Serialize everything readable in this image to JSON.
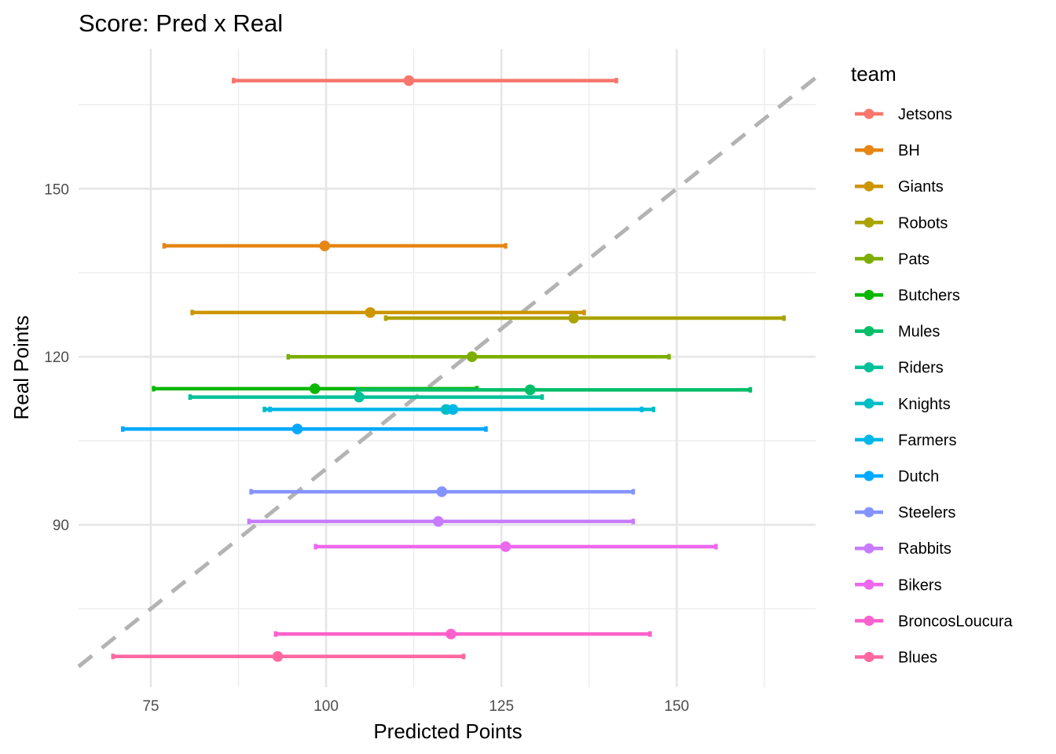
{
  "chart_data": {
    "type": "scatter",
    "subtype": "point-with-horizontal-errorbars",
    "title": "Score: Pred x Real",
    "xlabel": "Predicted Points",
    "ylabel": "Real Points",
    "xlim": [
      64.7,
      169.8
    ],
    "ylim": [
      61.0,
      175.0
    ],
    "x_ticks": [
      75,
      100,
      125,
      150
    ],
    "x_tick_labels": [
      "75",
      "100",
      "125",
      "150"
    ],
    "x_minor_ticks": [
      62.5,
      87.5,
      112.5,
      137.5,
      162.5
    ],
    "y_ticks": [
      90,
      120,
      150
    ],
    "y_tick_labels": [
      "90",
      "120",
      "150"
    ],
    "y_minor_ticks": [
      75,
      105,
      135,
      165
    ],
    "grid": true,
    "reference_line": {
      "type": "identity",
      "slope": 1,
      "intercept": 0,
      "style": "dashed",
      "color": "#b3b3b3"
    },
    "legend": {
      "title": "team",
      "position": "right"
    },
    "series": [
      {
        "name": "Jetsons",
        "color": "#F8766D",
        "pred": 111.8,
        "lo": 86.8,
        "hi": 141.4,
        "real": 169.3
      },
      {
        "name": "BH",
        "color": "#E68613",
        "pred": 99.8,
        "lo": 76.9,
        "hi": 125.6,
        "real": 139.8
      },
      {
        "name": "Giants",
        "color": "#CD9600",
        "pred": 106.3,
        "lo": 80.9,
        "hi": 136.8,
        "real": 127.9
      },
      {
        "name": "Robots",
        "color": "#ABA300",
        "pred": 135.3,
        "lo": 108.5,
        "hi": 165.3,
        "real": 126.9
      },
      {
        "name": "Pats",
        "color": "#7CAE00",
        "pred": 120.8,
        "lo": 94.6,
        "hi": 148.9,
        "real": 120.0
      },
      {
        "name": "Butchers",
        "color": "#0CB702",
        "pred": 98.4,
        "lo": 75.4,
        "hi": 121.5,
        "real": 114.3
      },
      {
        "name": "Mules",
        "color": "#00BE67",
        "pred": 129.1,
        "lo": 104.5,
        "hi": 160.5,
        "real": 114.1
      },
      {
        "name": "Riders",
        "color": "#00C19A",
        "pred": 104.7,
        "lo": 80.6,
        "hi": 130.8,
        "real": 112.8
      },
      {
        "name": "Knights",
        "color": "#00BFC4",
        "pred": 117.1,
        "lo": 91.2,
        "hi": 146.7,
        "real": 110.6
      },
      {
        "name": "Farmers",
        "color": "#00B8E7",
        "pred": 118.1,
        "lo": 92.0,
        "hi": 145.0,
        "real": 110.6
      },
      {
        "name": "Dutch",
        "color": "#00A9FF",
        "pred": 95.9,
        "lo": 71.0,
        "hi": 122.8,
        "real": 107.1
      },
      {
        "name": "Steelers",
        "color": "#8494FF",
        "pred": 116.5,
        "lo": 89.3,
        "hi": 143.8,
        "real": 95.9
      },
      {
        "name": "Rabbits",
        "color": "#C77CFF",
        "pred": 116.0,
        "lo": 89.0,
        "hi": 143.8,
        "real": 90.6
      },
      {
        "name": "Bikers",
        "color": "#ED68ED",
        "pred": 125.6,
        "lo": 98.5,
        "hi": 155.6,
        "real": 86.1
      },
      {
        "name": "BroncosLoucura",
        "color": "#FF61CC",
        "pred": 117.8,
        "lo": 92.8,
        "hi": 146.2,
        "real": 70.5
      },
      {
        "name": "Blues",
        "color": "#FF68A1",
        "pred": 93.1,
        "lo": 69.6,
        "hi": 119.6,
        "real": 66.5
      }
    ]
  }
}
